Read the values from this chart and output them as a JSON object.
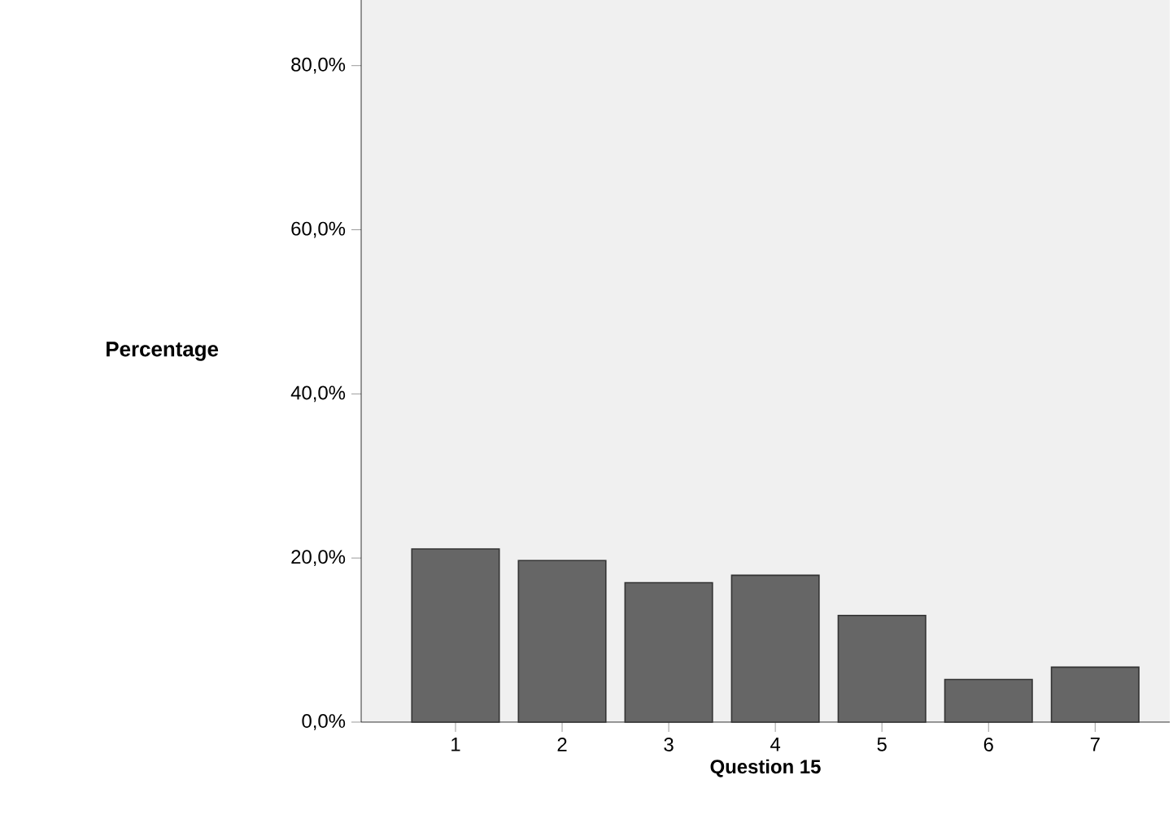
{
  "chart_data": {
    "type": "bar",
    "xlabel": "Question 15",
    "ylabel": "Percentage",
    "categories": [
      "1",
      "2",
      "3",
      "4",
      "5",
      "6",
      "7"
    ],
    "values": [
      21.1,
      19.7,
      17.0,
      17.9,
      13.0,
      5.2,
      6.7
    ],
    "color": "#666666",
    "ylim": [
      0,
      88
    ],
    "yticks": [
      {
        "value": 0,
        "label": "0,0%"
      },
      {
        "value": 20,
        "label": "20,0%"
      },
      {
        "value": 40,
        "label": "40,0%"
      },
      {
        "value": 60,
        "label": "60,0%"
      },
      {
        "value": 80,
        "label": "80,0%"
      }
    ],
    "grid": false
  }
}
